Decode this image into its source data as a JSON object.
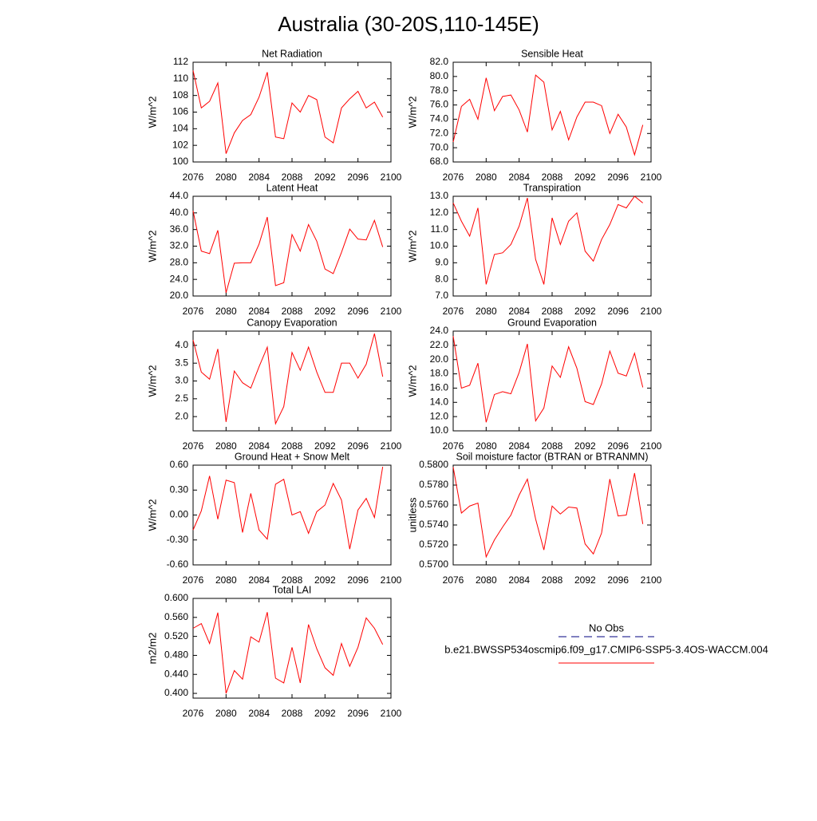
{
  "title": "Australia (30-20S,110-145E)",
  "legend": {
    "entries": [
      {
        "label": "No Obs",
        "color": "#000080",
        "dash": true
      },
      {
        "label": "b.e21.BWSSP534oscmip6.f09_g17.CMIP6-SSP5-3.4OS-WACCM.004",
        "color": "#ff0000",
        "dash": false
      }
    ]
  },
  "chart_data": [
    {
      "type": "line",
      "title": "Net Radiation",
      "ylabel": "W/m^2",
      "color": "#ff0000",
      "x": [
        2076,
        2077,
        2078,
        2079,
        2080,
        2081,
        2082,
        2083,
        2084,
        2085,
        2086,
        2087,
        2088,
        2089,
        2090,
        2091,
        2092,
        2093,
        2094,
        2095,
        2096,
        2097,
        2098,
        2099
      ],
      "values": [
        111,
        106.5,
        107.3,
        109.5,
        101,
        103.5,
        105,
        105.7,
        107.8,
        110.8,
        103,
        102.8,
        107.1,
        106,
        108,
        107.5,
        103,
        102.3,
        106.5,
        107.6,
        108.5,
        106.5,
        107.2,
        105.4
      ],
      "xlim": [
        2076,
        2100
      ],
      "xticks": [
        2076,
        2080,
        2084,
        2088,
        2092,
        2096,
        2100
      ],
      "ylim": [
        100,
        112
      ],
      "yticks": [
        100,
        102,
        104,
        106,
        108,
        110,
        112
      ]
    },
    {
      "type": "line",
      "title": "Sensible Heat",
      "ylabel": "W/m^2",
      "color": "#ff0000",
      "x": [
        2076,
        2077,
        2078,
        2079,
        2080,
        2081,
        2082,
        2083,
        2084,
        2085,
        2086,
        2087,
        2088,
        2089,
        2090,
        2091,
        2092,
        2093,
        2094,
        2095,
        2096,
        2097,
        2098,
        2099
      ],
      "values": [
        70.8,
        75.8,
        76.8,
        74,
        79.8,
        75.2,
        77.2,
        77.4,
        75.3,
        72.2,
        80.2,
        79.2,
        72.5,
        75.1,
        71.1,
        74.3,
        76.4,
        76.4,
        75.9,
        72,
        74.7,
        72.9,
        69,
        73.2
      ],
      "xlim": [
        2076,
        2100
      ],
      "xticks": [
        2076,
        2080,
        2084,
        2088,
        2092,
        2096,
        2100
      ],
      "ylim": [
        68,
        82
      ],
      "yticks": [
        {
          "value": 68,
          "label": "68.0"
        },
        {
          "value": 70,
          "label": "70.0"
        },
        {
          "value": 72,
          "label": "72.0"
        },
        {
          "value": 74,
          "label": "74.0"
        },
        {
          "value": 76,
          "label": "76.0"
        },
        {
          "value": 78,
          "label": "78.0"
        },
        {
          "value": 80,
          "label": "80.0"
        },
        {
          "value": 82,
          "label": "82.0"
        }
      ]
    },
    {
      "type": "line",
      "title": "Latent Heat",
      "ylabel": "W/m^2",
      "color": "#ff0000",
      "x": [
        2076,
        2077,
        2078,
        2079,
        2080,
        2081,
        2082,
        2083,
        2084,
        2085,
        2086,
        2087,
        2088,
        2089,
        2090,
        2091,
        2092,
        2093,
        2094,
        2095,
        2096,
        2097,
        2098,
        2099
      ],
      "values": [
        40.5,
        30.8,
        30.2,
        35.8,
        20.8,
        27.9,
        28,
        28,
        32.5,
        39,
        22.5,
        23.2,
        34.8,
        30.8,
        37.2,
        33.2,
        26.5,
        25.4,
        30.5,
        36.1,
        33.7,
        33.5,
        38.2,
        31.8
      ],
      "xlim": [
        2076,
        2100
      ],
      "xticks": [
        2076,
        2080,
        2084,
        2088,
        2092,
        2096,
        2100
      ],
      "ylim": [
        20,
        44
      ],
      "yticks": [
        {
          "value": 20,
          "label": "20.0"
        },
        {
          "value": 24,
          "label": "24.0"
        },
        {
          "value": 28,
          "label": "28.0"
        },
        {
          "value": 32,
          "label": "32.0"
        },
        {
          "value": 36,
          "label": "36.0"
        },
        {
          "value": 40,
          "label": "40.0"
        },
        {
          "value": 44,
          "label": "44.0"
        }
      ]
    },
    {
      "type": "line",
      "title": "Transpiration",
      "ylabel": "W/m^2",
      "color": "#ff0000",
      "x": [
        2076,
        2077,
        2078,
        2079,
        2080,
        2081,
        2082,
        2083,
        2084,
        2085,
        2086,
        2087,
        2088,
        2089,
        2090,
        2091,
        2092,
        2093,
        2094,
        2095,
        2096,
        2097,
        2098,
        2099
      ],
      "values": [
        12.6,
        11.5,
        10.6,
        12.3,
        7.7,
        9.5,
        9.6,
        10.1,
        11.2,
        12.9,
        9.2,
        7.7,
        11.7,
        10.1,
        11.5,
        12,
        9.7,
        9.1,
        10.4,
        11.3,
        12.5,
        12.3,
        13,
        12.6
      ],
      "xlim": [
        2076,
        2100
      ],
      "xticks": [
        2076,
        2080,
        2084,
        2088,
        2092,
        2096,
        2100
      ],
      "ylim": [
        7,
        13
      ],
      "yticks": [
        {
          "value": 7,
          "label": "7.0"
        },
        {
          "value": 8,
          "label": "8.0"
        },
        {
          "value": 9,
          "label": "9.0"
        },
        {
          "value": 10,
          "label": "10.0"
        },
        {
          "value": 11,
          "label": "11.0"
        },
        {
          "value": 12,
          "label": "12.0"
        },
        {
          "value": 13,
          "label": "13.0"
        }
      ]
    },
    {
      "type": "line",
      "title": "Canopy Evaporation",
      "ylabel": "W/m^2",
      "color": "#ff0000",
      "x": [
        2076,
        2077,
        2078,
        2079,
        2080,
        2081,
        2082,
        2083,
        2084,
        2085,
        2086,
        2087,
        2088,
        2089,
        2090,
        2091,
        2092,
        2093,
        2094,
        2095,
        2096,
        2097,
        2098,
        2099
      ],
      "values": [
        4.15,
        3.25,
        3.05,
        3.9,
        1.85,
        3.28,
        2.95,
        2.8,
        3.4,
        3.95,
        1.8,
        2.28,
        3.8,
        3.3,
        3.95,
        3.25,
        2.68,
        2.68,
        3.5,
        3.5,
        3.08,
        3.47,
        4.33,
        3.12
      ],
      "xlim": [
        2076,
        2100
      ],
      "xticks": [
        2076,
        2080,
        2084,
        2088,
        2092,
        2096,
        2100
      ],
      "ylim": [
        1.6,
        4.4
      ],
      "yticks": [
        {
          "value": 2,
          "label": "2.0"
        },
        2.5,
        {
          "value": 3,
          "label": "3.0"
        },
        3.5,
        {
          "value": 4,
          "label": "4.0"
        }
      ]
    },
    {
      "type": "line",
      "title": "Ground Evaporation",
      "ylabel": "W/m^2",
      "color": "#ff0000",
      "x": [
        2076,
        2077,
        2078,
        2079,
        2080,
        2081,
        2082,
        2083,
        2084,
        2085,
        2086,
        2087,
        2088,
        2089,
        2090,
        2091,
        2092,
        2093,
        2094,
        2095,
        2096,
        2097,
        2098,
        2099
      ],
      "values": [
        23.3,
        16,
        16.4,
        19.5,
        11.2,
        15.1,
        15.5,
        15.2,
        18.2,
        22.2,
        11.4,
        13.2,
        19.1,
        17.5,
        21.8,
        18.8,
        14.1,
        13.7,
        16.6,
        21.2,
        18.1,
        17.7,
        20.9,
        16.1
      ],
      "xlim": [
        2076,
        2100
      ],
      "xticks": [
        2076,
        2080,
        2084,
        2088,
        2092,
        2096,
        2100
      ],
      "ylim": [
        10,
        24
      ],
      "yticks": [
        {
          "value": 10,
          "label": "10.0"
        },
        {
          "value": 12,
          "label": "12.0"
        },
        {
          "value": 14,
          "label": "14.0"
        },
        {
          "value": 16,
          "label": "16.0"
        },
        {
          "value": 18,
          "label": "18.0"
        },
        {
          "value": 20,
          "label": "20.0"
        },
        {
          "value": 22,
          "label": "22.0"
        },
        {
          "value": 24,
          "label": "24.0"
        }
      ]
    },
    {
      "type": "line",
      "title": "Ground Heat + Snow Melt",
      "ylabel": "W/m^2",
      "color": "#ff0000",
      "x": [
        2076,
        2077,
        2078,
        2079,
        2080,
        2081,
        2082,
        2083,
        2084,
        2085,
        2086,
        2087,
        2088,
        2089,
        2090,
        2091,
        2092,
        2093,
        2094,
        2095,
        2096,
        2097,
        2098,
        2099
      ],
      "values": [
        -0.18,
        0.05,
        0.47,
        -0.05,
        0.42,
        0.39,
        -0.21,
        0.26,
        -0.18,
        -0.29,
        0.37,
        0.43,
        0,
        0.04,
        -0.22,
        0.04,
        0.12,
        0.38,
        0.18,
        -0.41,
        0.06,
        0.2,
        -0.03,
        0.58
      ],
      "xlim": [
        2076,
        2100
      ],
      "xticks": [
        2076,
        2080,
        2084,
        2088,
        2092,
        2096,
        2100
      ],
      "ylim": [
        -0.6,
        0.6
      ],
      "yticks": [
        {
          "value": -0.6,
          "label": "-0.60"
        },
        {
          "value": -0.3,
          "label": "-0.30"
        },
        {
          "value": 0,
          "label": "0.00"
        },
        {
          "value": 0.3,
          "label": "0.30"
        },
        {
          "value": 0.6,
          "label": "0.60"
        }
      ]
    },
    {
      "type": "line",
      "title": "Soil moisture factor (BTRAN or BTRANMN)",
      "ylabel": "unitless",
      "color": "#ff0000",
      "x": [
        2076,
        2077,
        2078,
        2079,
        2080,
        2081,
        2082,
        2083,
        2084,
        2085,
        2086,
        2087,
        2088,
        2089,
        2090,
        2091,
        2092,
        2093,
        2094,
        2095,
        2096,
        2097,
        2098,
        2099
      ],
      "values": [
        0.5798,
        0.5752,
        0.5759,
        0.5762,
        0.5708,
        0.5725,
        0.5738,
        0.575,
        0.577,
        0.5786,
        0.5746,
        0.5715,
        0.5759,
        0.5751,
        0.5758,
        0.5757,
        0.5721,
        0.5711,
        0.5732,
        0.5786,
        0.5749,
        0.575,
        0.5792,
        0.5741
      ],
      "xlim": [
        2076,
        2100
      ],
      "xticks": [
        2076,
        2080,
        2084,
        2088,
        2092,
        2096,
        2100
      ],
      "ylim": [
        0.57,
        0.58
      ],
      "yticks": [
        {
          "value": 0.57,
          "label": "0.5700"
        },
        {
          "value": 0.572,
          "label": "0.5720"
        },
        {
          "value": 0.574,
          "label": "0.5740"
        },
        {
          "value": 0.576,
          "label": "0.5760"
        },
        {
          "value": 0.578,
          "label": "0.5780"
        },
        {
          "value": 0.58,
          "label": "0.5800"
        }
      ]
    },
    {
      "type": "line",
      "title": "Total LAI",
      "ylabel": "m2/m2",
      "color": "#ff0000",
      "x": [
        2076,
        2077,
        2078,
        2079,
        2080,
        2081,
        2082,
        2083,
        2084,
        2085,
        2086,
        2087,
        2088,
        2089,
        2090,
        2091,
        2092,
        2093,
        2094,
        2095,
        2096,
        2097,
        2098,
        2099
      ],
      "values": [
        0.537,
        0.547,
        0.505,
        0.57,
        0.4,
        0.448,
        0.43,
        0.519,
        0.508,
        0.571,
        0.432,
        0.422,
        0.497,
        0.422,
        0.545,
        0.494,
        0.454,
        0.438,
        0.505,
        0.457,
        0.497,
        0.559,
        0.537,
        0.503
      ],
      "xlim": [
        2076,
        2100
      ],
      "xticks": [
        2076,
        2080,
        2084,
        2088,
        2092,
        2096,
        2100
      ],
      "ylim": [
        0.39,
        0.6
      ],
      "yticks": [
        {
          "value": 0.4,
          "label": "0.400"
        },
        {
          "value": 0.44,
          "label": "0.440"
        },
        {
          "value": 0.48,
          "label": "0.480"
        },
        {
          "value": 0.52,
          "label": "0.520"
        },
        {
          "value": 0.56,
          "label": "0.560"
        },
        {
          "value": 0.6,
          "label": "0.600"
        }
      ]
    }
  ]
}
